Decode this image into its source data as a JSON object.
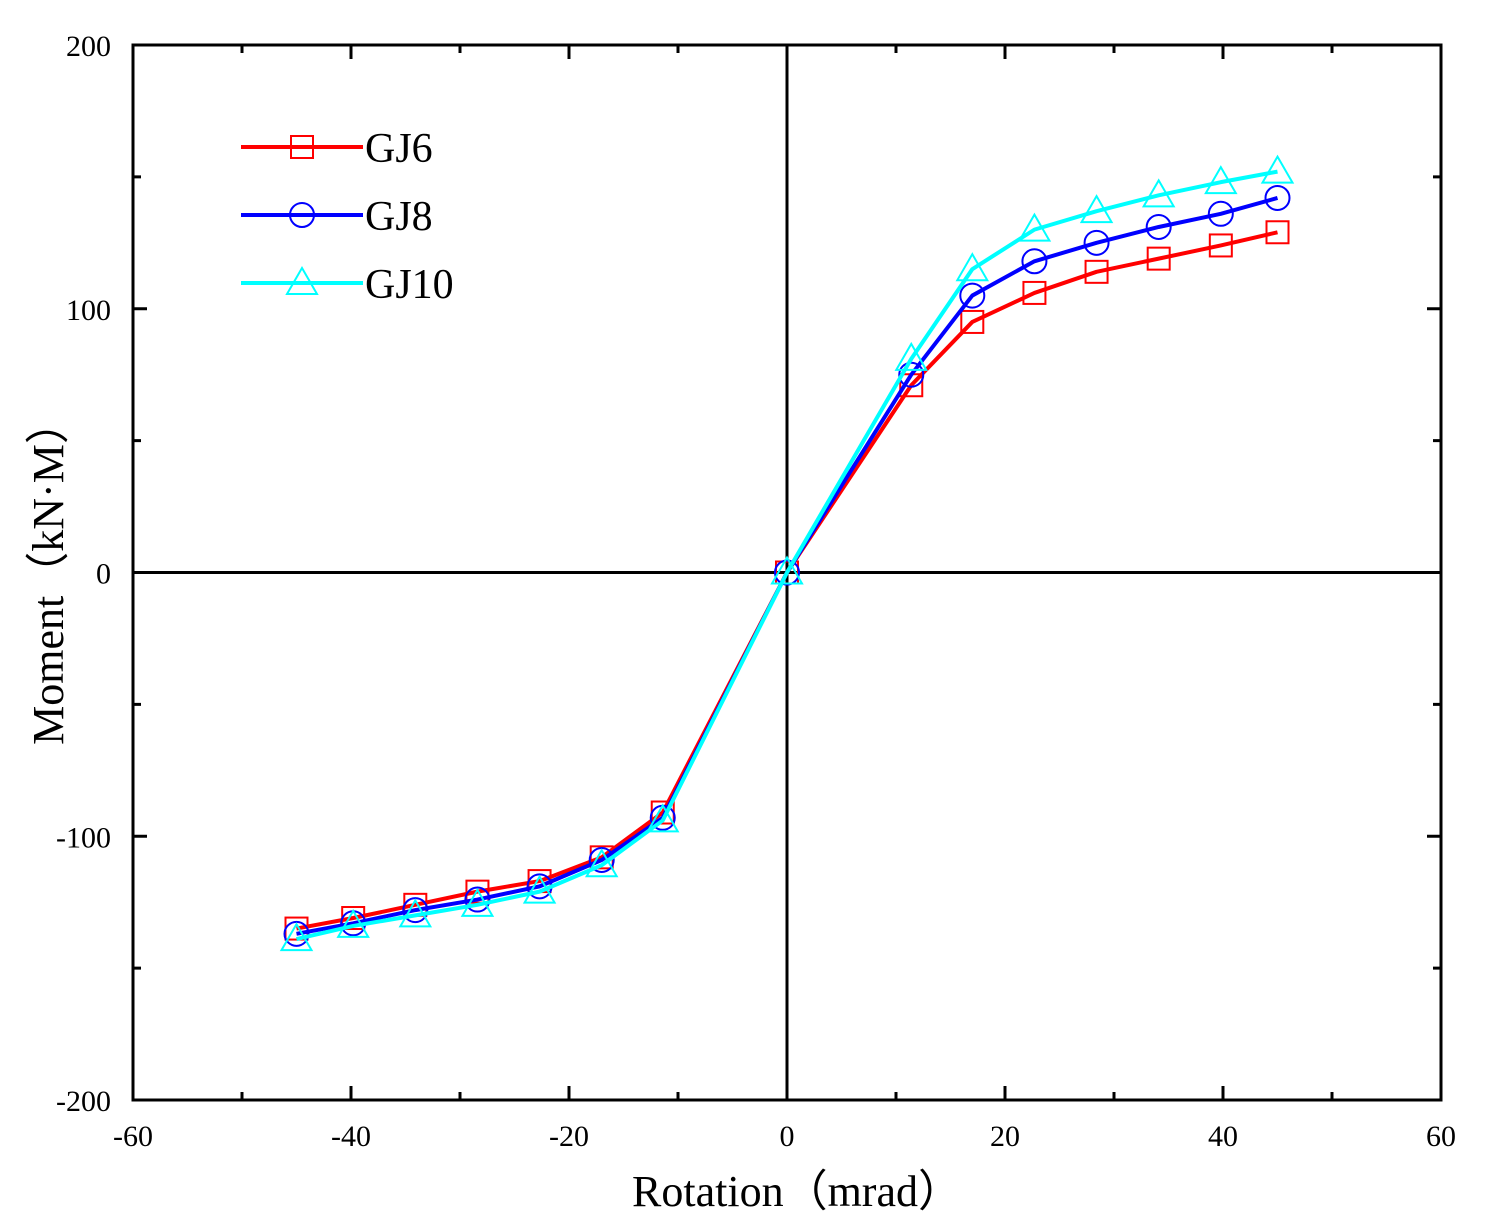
{
  "chart_data": {
    "type": "line",
    "title": "",
    "xlabel": "Rotation（mrad）",
    "ylabel": "Moment（kN·M）",
    "xlim": [
      -60,
      60
    ],
    "ylim": [
      -200,
      200
    ],
    "x_ticks": [
      -60,
      -40,
      -20,
      0,
      20,
      40,
      60
    ],
    "y_ticks": [
      -200,
      -100,
      0,
      100,
      200
    ],
    "x_tick_labels": [
      "-60",
      "-40",
      "-20",
      "0",
      "20",
      "40",
      "60"
    ],
    "y_tick_labels": [
      "-200",
      "-100",
      "0",
      "100",
      "200"
    ],
    "x_minor_ticks": [
      -50,
      -30,
      -10,
      10,
      30,
      50
    ],
    "y_minor_ticks": [
      -150,
      -50,
      50,
      150
    ],
    "grid": false,
    "zero_lines": true,
    "legend_position": "top-left",
    "series": [
      {
        "name": "GJ6",
        "color": "#ff0000",
        "marker": "square",
        "x": [
          -45,
          -39.8,
          -34.1,
          -28.4,
          -22.7,
          -17,
          -11.4,
          0,
          11.4,
          17,
          22.7,
          28.4,
          34.1,
          39.8,
          45
        ],
        "y": [
          -135,
          -131,
          -126,
          -121,
          -117,
          -108,
          -91,
          0,
          71,
          95,
          106,
          114,
          119,
          124,
          129
        ]
      },
      {
        "name": "GJ8",
        "color": "#0000ff",
        "marker": "circle",
        "x": [
          -45,
          -39.8,
          -34.1,
          -28.4,
          -22.7,
          -17,
          -11.4,
          0,
          11.4,
          17,
          22.7,
          28.4,
          34.1,
          39.8,
          45
        ],
        "y": [
          -137,
          -133,
          -128,
          -124,
          -119,
          -109,
          -93,
          0,
          75,
          105,
          118,
          125,
          131,
          136,
          142
        ]
      },
      {
        "name": "GJ10",
        "color": "#00ffff",
        "marker": "triangle",
        "x": [
          -45,
          -39.8,
          -34.1,
          -28.4,
          -22.7,
          -17,
          -11.4,
          0,
          11.4,
          17,
          22.7,
          28.4,
          34.1,
          39.8,
          45
        ],
        "y": [
          -139,
          -134,
          -130,
          -126,
          -121,
          -111,
          -94,
          0,
          81,
          115,
          130,
          137,
          143,
          148,
          152
        ]
      }
    ]
  }
}
